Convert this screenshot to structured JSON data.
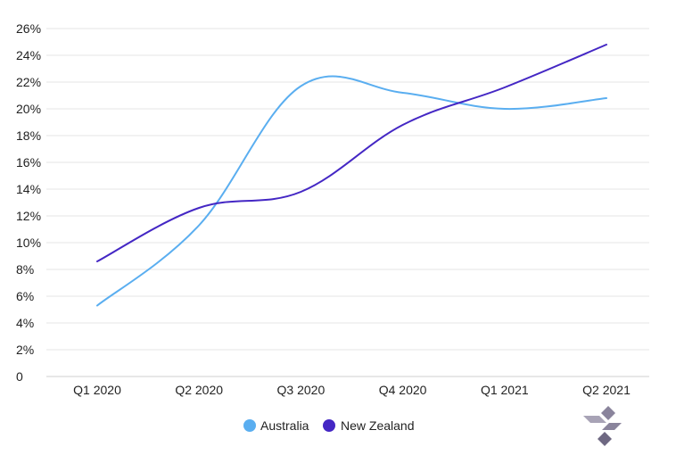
{
  "chart_data": {
    "type": "line",
    "categories": [
      "Q1 2020",
      "Q2 2020",
      "Q3 2020",
      "Q4 2020",
      "Q1 2021",
      "Q2 2021"
    ],
    "series": [
      {
        "name": "Australia",
        "color": "#5aaef0",
        "values": [
          5.3,
          11.3,
          21.7,
          21.2,
          20.0,
          20.8
        ]
      },
      {
        "name": "New Zealand",
        "color": "#4427c4",
        "values": [
          8.6,
          12.6,
          13.8,
          18.8,
          21.6,
          24.8
        ]
      }
    ],
    "y_ticks": [
      "0",
      "2%",
      "4%",
      "6%",
      "8%",
      "10%",
      "12%",
      "14%",
      "16%",
      "18%",
      "20%",
      "22%",
      "24%",
      "26%"
    ],
    "ylim": [
      0,
      26
    ],
    "grid": true,
    "legend_position": "bottom-center",
    "title": "",
    "xlabel": "",
    "ylabel": ""
  },
  "logo": {
    "icon": "diamond-cluster-logo",
    "color": "#8a849c"
  }
}
